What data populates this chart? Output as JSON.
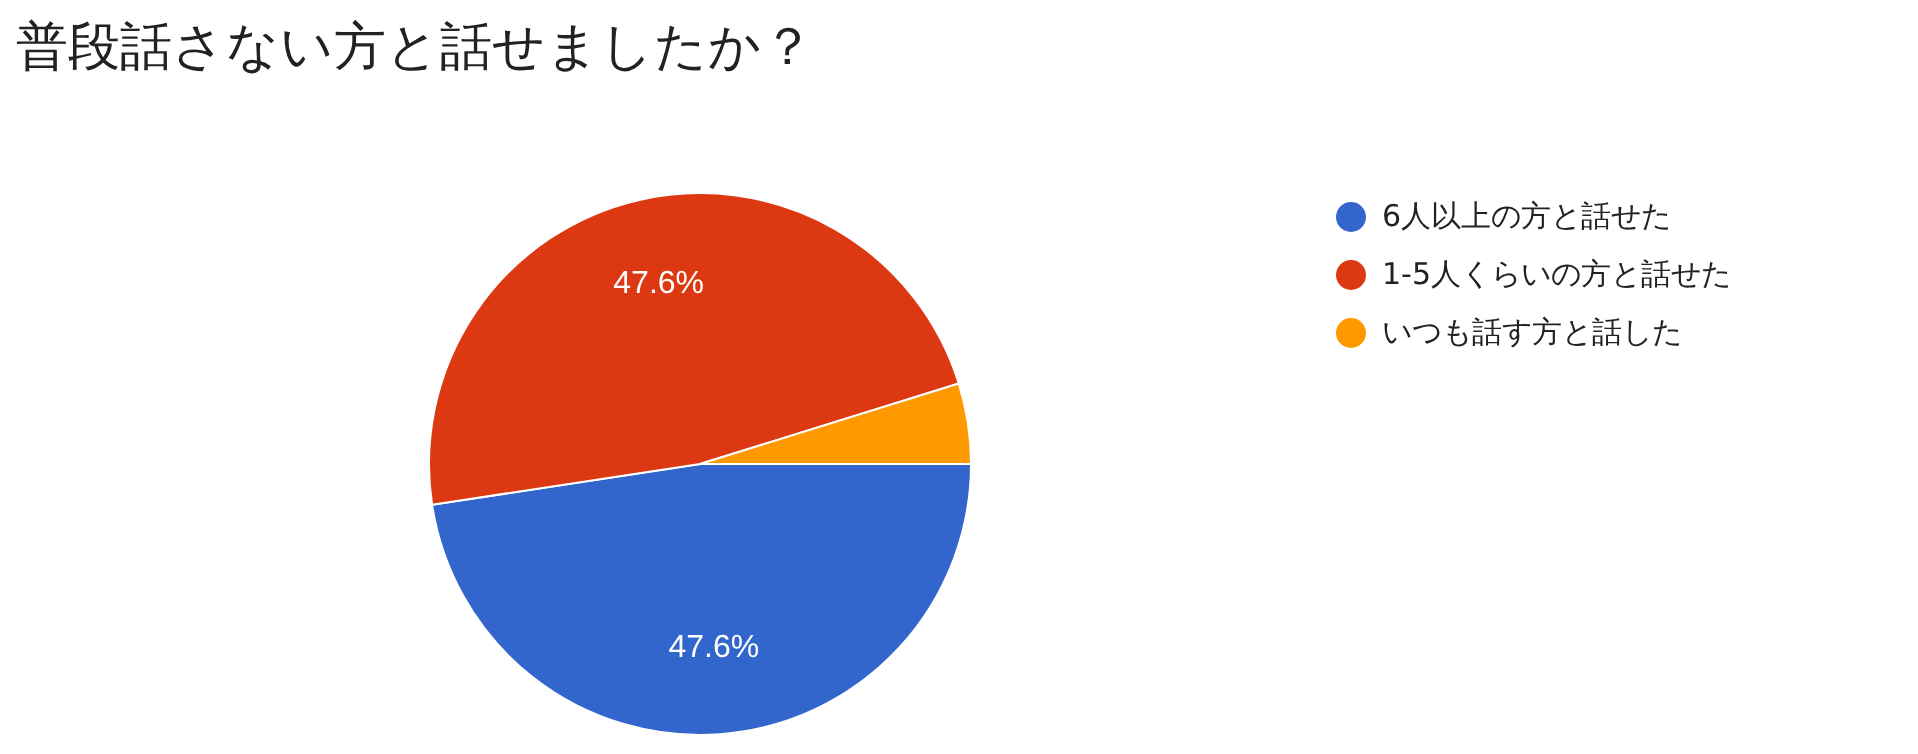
{
  "chart_data": {
    "type": "pie",
    "title": "普段話さない方と話せましたか？",
    "categories": [
      "6人以上の方と話せた",
      "1-5人くらいの方と話せた",
      "いつも話す方と話した"
    ],
    "values": [
      47.6,
      47.6,
      4.8
    ],
    "colors": [
      "#3366cc",
      "#dc3912",
      "#ff9900"
    ],
    "value_labels": [
      "47.6%",
      "47.6%",
      null
    ],
    "legend": "right"
  }
}
